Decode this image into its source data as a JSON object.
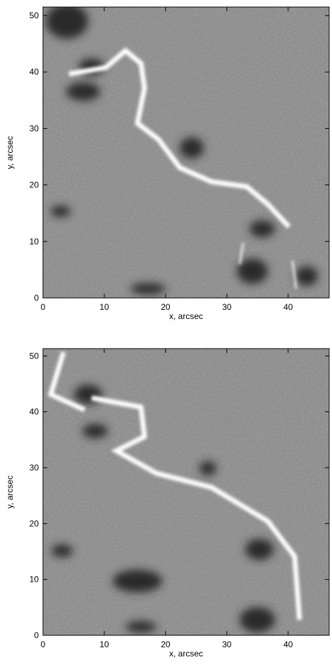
{
  "chart_data": [
    {
      "type": "image",
      "xlabel": "x, arcsec",
      "ylabel": "y, arcsec",
      "xlim": [
        0,
        46.7
      ],
      "ylim": [
        0,
        51.5
      ],
      "xticks": [
        0,
        10,
        20,
        30,
        40
      ],
      "yticks": [
        0,
        10,
        20,
        30,
        40,
        50
      ]
    },
    {
      "type": "image",
      "xlabel": "x, arcsec",
      "ylabel": "y, arcsec",
      "xlim": [
        0,
        46.7
      ],
      "ylim": [
        0,
        51.3
      ],
      "xticks": [
        0,
        10,
        20,
        30,
        40
      ],
      "yticks": [
        0,
        10,
        20,
        30,
        40,
        50
      ]
    }
  ]
}
